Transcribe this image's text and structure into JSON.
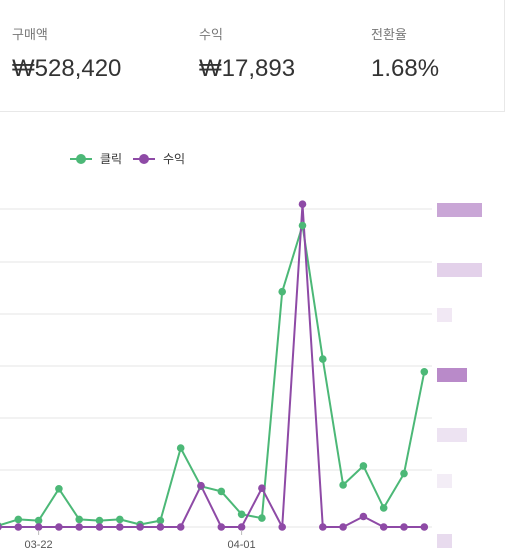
{
  "stats": [
    {
      "label": "구매액",
      "value": "₩528,420"
    },
    {
      "label": "수익",
      "value": "₩17,893"
    },
    {
      "label": "전환율",
      "value": "1.68%"
    }
  ],
  "colors": {
    "clicks": "#4cb877",
    "revenue": "#8e4aa6"
  },
  "chart_data": {
    "type": "line",
    "series": [
      {
        "name": "클릭",
        "color": "#4cb877",
        "values": [
          0.1,
          0.6,
          0.5,
          3.0,
          0.6,
          0.5,
          0.6,
          0.2,
          0.5,
          6.2,
          3.2,
          2.8,
          1.0,
          0.7,
          18.5,
          23.7,
          13.2,
          3.3,
          4.8,
          1.5,
          4.2,
          12.2
        ]
      },
      {
        "name": "수익",
        "color": "#8e4aa6",
        "values": [
          0,
          0,
          0,
          0,
          0,
          0,
          0,
          0,
          0,
          0,
          13.0,
          0,
          0,
          12.2,
          0,
          101.5,
          0,
          0,
          3.3,
          0,
          0,
          0
        ]
      }
    ],
    "x_tick_labels": [
      "03-22",
      "04-01"
    ],
    "x_tick_indices": [
      2,
      12
    ],
    "ylim_clicks": [
      0,
      25
    ],
    "ylim_revenue": [
      0,
      100
    ],
    "grid": "horizontal",
    "legend": "top-left"
  }
}
